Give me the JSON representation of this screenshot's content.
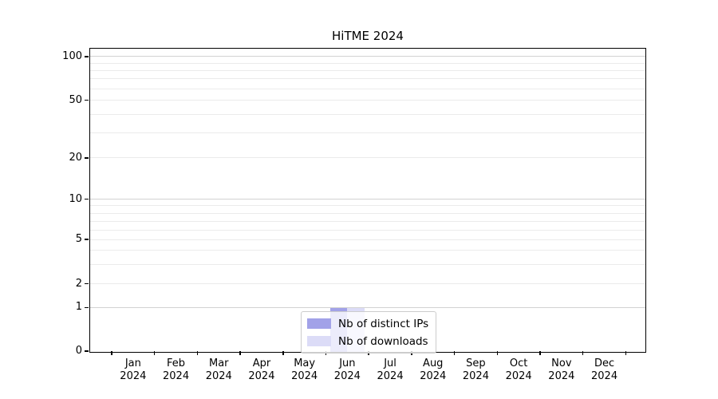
{
  "chart_data": {
    "type": "bar",
    "title": "HiTME 2024",
    "categories": [
      "Jan",
      "Feb",
      "Mar",
      "Apr",
      "May",
      "Jun",
      "Jul",
      "Aug",
      "Sep",
      "Oct",
      "Nov",
      "Dec"
    ],
    "category_year": "2024",
    "series": [
      {
        "name": "Nb of distinct IPs",
        "color": "#a2a2e8",
        "values": [
          0,
          0,
          0,
          0,
          0,
          1,
          0,
          0,
          0,
          0,
          0,
          0
        ]
      },
      {
        "name": "Nb of downloads",
        "color": "#dcdcf7",
        "values": [
          0,
          0,
          0,
          0,
          0,
          1,
          0,
          0,
          0,
          0,
          0,
          0
        ]
      }
    ],
    "xlabel": "",
    "ylabel": "",
    "ylim": [
      0,
      100
    ],
    "y_scale": "asinh",
    "y_ticks": [
      0,
      1,
      2,
      5,
      10,
      20,
      50,
      100
    ],
    "y_major_gridlines": [
      1,
      10,
      100
    ],
    "y_minor_gridlines": [
      2,
      3,
      4,
      5,
      6,
      7,
      8,
      9,
      20,
      30,
      40,
      50,
      60,
      70,
      80,
      90
    ],
    "grid": true,
    "legend_position": "lower center",
    "colors": {
      "axis": "#000000",
      "major_grid": "#d2d2d2",
      "minor_grid": "#ebebeb",
      "legend_border": "#cccccc"
    }
  }
}
